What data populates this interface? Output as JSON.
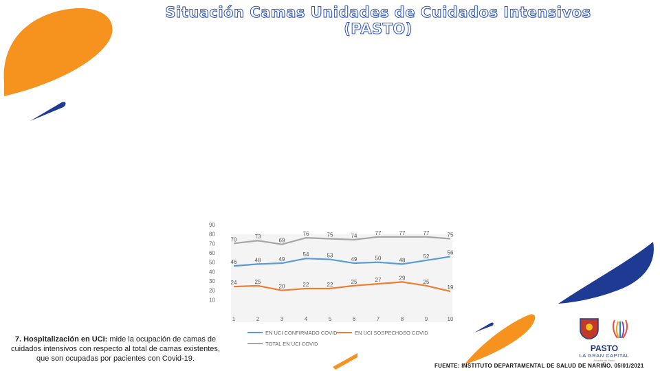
{
  "page": {
    "title": "Situación Camas Unidades de Cuidados Intensivos (PASTO)",
    "description_heading": "7. Hospitalización en UCI:",
    "description_text": "mide la ocupación de camas de cuidados intensivos con respecto al total de camas existentes, que son ocupadas por pacientes con Covid-19.",
    "source": "FUENTE: INSTITUTO DEPARTAMENTAL DE SALUD DE NARIÑO. 05/01/2021",
    "logo": {
      "name": "PASTO",
      "subtitle": "LA GRAN CAPITAL",
      "tagline": "Alcaldía de Pasto"
    },
    "colors": {
      "orange": "#f6921e",
      "navy": "#1f3a93"
    }
  },
  "chart_data": {
    "type": "line",
    "x": [
      1,
      2,
      3,
      4,
      5,
      6,
      7,
      8,
      9,
      10
    ],
    "ylim": [
      0,
      90
    ],
    "yticks": [
      10,
      20,
      30,
      40,
      50,
      60,
      70,
      80,
      90
    ],
    "grid": false,
    "legend_position": "bottom",
    "series": [
      {
        "name": "EN UCI CONFIRMADO COVID",
        "color": "#5b9bd5",
        "values": [
          46,
          48,
          49,
          54,
          53,
          49,
          50,
          48,
          52,
          56
        ]
      },
      {
        "name": "EN UCI SOSPECHOSO COVID",
        "color": "#ed7d31",
        "values": [
          24,
          25,
          20,
          22,
          22,
          25,
          27,
          29,
          25,
          19
        ]
      },
      {
        "name": "TOTAL EN UCI COVID",
        "color": "#a5a5a5",
        "values": [
          70,
          73,
          69,
          76,
          75,
          74,
          77,
          77,
          77,
          75
        ]
      }
    ]
  }
}
